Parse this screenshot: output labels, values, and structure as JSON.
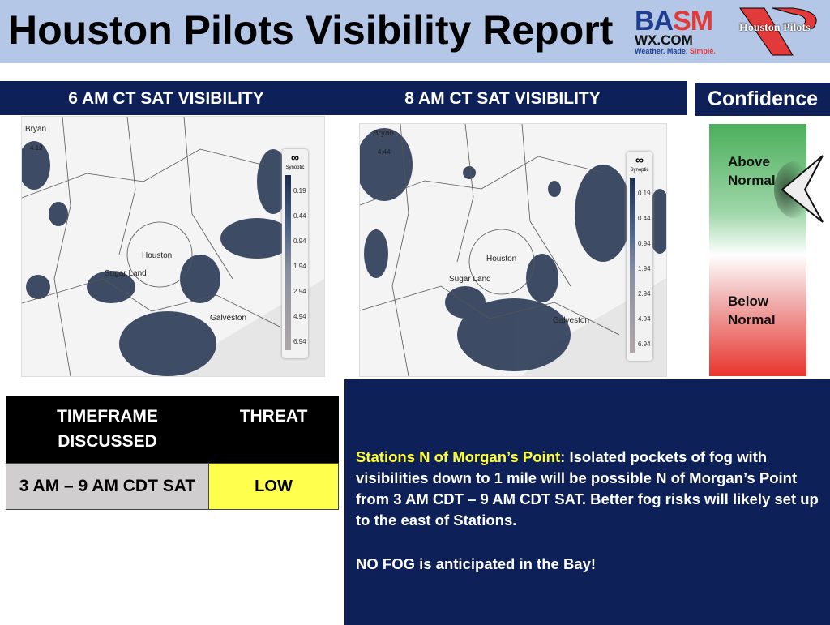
{
  "header": {
    "title": "Houston Pilots Visibility Report",
    "logo_basm": "BASM WX.COM Weather. Made. Simple.",
    "logo_pilots": "Houston Pilots"
  },
  "panels": [
    {
      "title": "6 AM CT SAT VISIBILITY",
      "labels": {
        "city1": "Bryan",
        "num": "4.12",
        "city2": "Houston",
        "city3": "Sugar Land",
        "city4": "Galveston"
      }
    },
    {
      "title": "8 AM CT SAT VISIBILITY",
      "labels": {
        "city1": "Bryan",
        "num": "4.44",
        "city2": "Houston",
        "city3": "Sugar Land",
        "city4": "Galveston"
      }
    }
  ],
  "legend": {
    "brand": "Synoptic",
    "values": [
      "0.19",
      "0.44",
      "0.94",
      "1.94",
      "2.94",
      "4.94",
      "6.94"
    ]
  },
  "confidence": {
    "title": "Confidence",
    "above": "Above Normal",
    "below": "Below Normal",
    "level": "above"
  },
  "table": {
    "headers": [
      "TIMEFRAME DISCUSSED",
      "THREAT"
    ],
    "row": [
      "3 AM – 9 AM CDT SAT",
      "LOW"
    ],
    "threat_color": "#ffff4d"
  },
  "discussion": {
    "highlight": "Stations N of Morgan’s Point",
    "text": ": Isolated pockets of fog with visibilities down to 1 mile will be possible N of Morgan’s Point from 3 AM CDT – 9 AM CDT SAT. Better fog risks will likely set up to the east of Stations.",
    "note": "NO FOG is anticipated in the Bay!"
  }
}
